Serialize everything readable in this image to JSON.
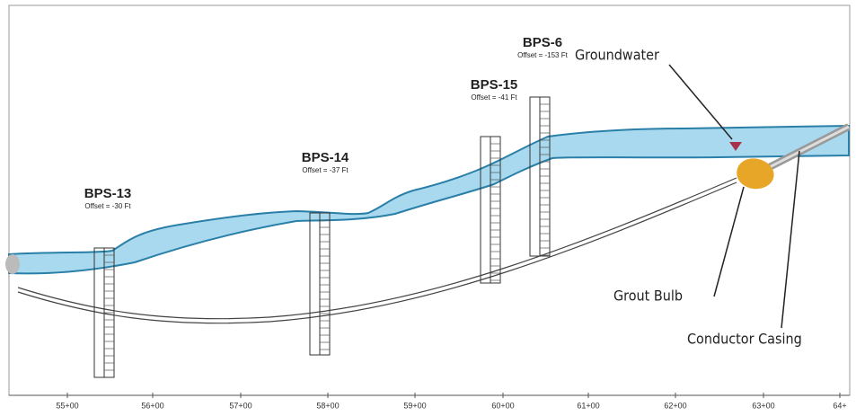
{
  "borings": [
    {
      "name": "BPS-13",
      "offset": "Offset = -30 Ft"
    },
    {
      "name": "BPS-14",
      "offset": "Offset = -37 Ft"
    },
    {
      "name": "BPS-15",
      "offset": "Offset = -41 Ft"
    },
    {
      "name": "BPS-6",
      "offset": "Offset = -153 Ft"
    }
  ],
  "annotations": {
    "groundwater": "Groundwater",
    "grout_bulb": "Grout Bulb",
    "conductor_casing": "Conductor Casing"
  },
  "stations": [
    "55+00",
    "56+00",
    "57+00",
    "58+00",
    "59+00",
    "60+00",
    "61+00",
    "62+00",
    "63+00",
    "64+"
  ]
}
